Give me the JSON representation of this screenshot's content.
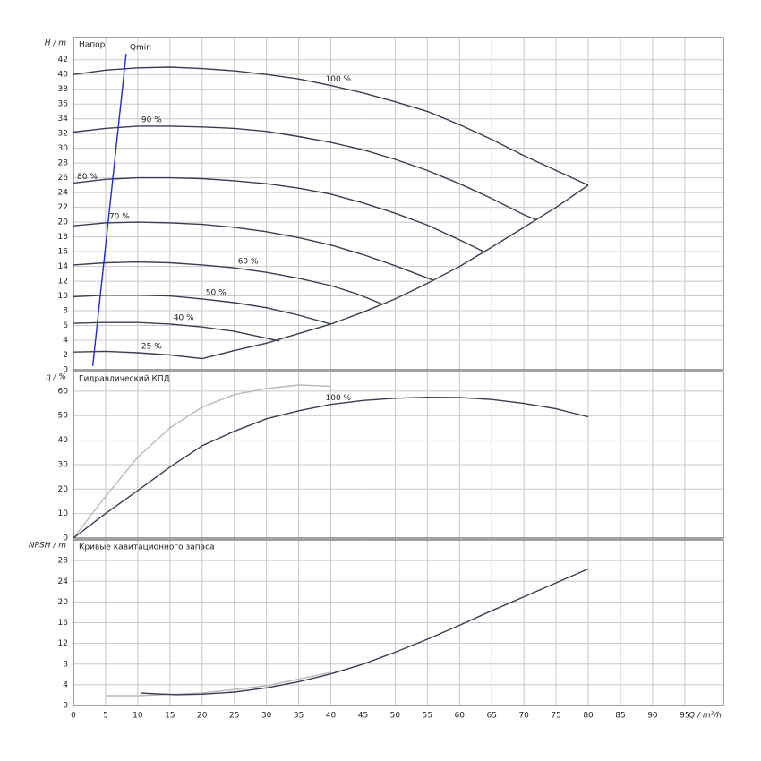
{
  "chart_data": [
    {
      "type": "line",
      "title": "Напор",
      "ylabel": "H / m",
      "grid": true,
      "xlim": [
        0,
        101
      ],
      "xticks": [
        0,
        5,
        10,
        15,
        20,
        25,
        30,
        35,
        40,
        45,
        50,
        55,
        60,
        65,
        70,
        75,
        80,
        85,
        90,
        95
      ],
      "ylim": [
        0,
        45
      ],
      "yticks": [
        0,
        2,
        4,
        6,
        8,
        10,
        12,
        14,
        16,
        18,
        20,
        22,
        24,
        26,
        28,
        30,
        32,
        34,
        36,
        38,
        40,
        42
      ],
      "series": [
        {
          "name": "100 %",
          "color": "#3a3f4f",
          "x": [
            0,
            5,
            10,
            15,
            20,
            25,
            30,
            35,
            40,
            45,
            50,
            55,
            60,
            65,
            70,
            75,
            80
          ],
          "values": [
            40,
            40.6,
            40.9,
            41,
            40.8,
            40.5,
            40,
            39.4,
            38.5,
            37.5,
            36.3,
            35,
            33.2,
            31.2,
            29,
            27,
            25
          ]
        },
        {
          "name": "90 %",
          "color": "#3a3f4f",
          "x": [
            0,
            5,
            10,
            15,
            20,
            25,
            30,
            35,
            40,
            45,
            50,
            55,
            60,
            65,
            70,
            72
          ],
          "values": [
            32.2,
            32.7,
            33,
            33,
            32.9,
            32.7,
            32.3,
            31.6,
            30.8,
            29.8,
            28.5,
            27,
            25.2,
            23.2,
            21,
            20.3
          ]
        },
        {
          "name": "80 %",
          "color": "#3a3f4f",
          "x": [
            0,
            5,
            10,
            15,
            20,
            25,
            30,
            35,
            40,
            45,
            50,
            55,
            60,
            64
          ],
          "values": [
            25.3,
            25.8,
            26,
            26,
            25.9,
            25.6,
            25.2,
            24.6,
            23.8,
            22.6,
            21.2,
            19.6,
            17.6,
            15.9
          ]
        },
        {
          "name": "70 %",
          "color": "#3a3f4f",
          "x": [
            0,
            5,
            10,
            15,
            20,
            25,
            30,
            35,
            40,
            45,
            50,
            56
          ],
          "values": [
            19.5,
            19.9,
            20,
            19.9,
            19.7,
            19.3,
            18.7,
            17.9,
            16.9,
            15.6,
            14.1,
            12.1
          ]
        },
        {
          "name": "60 %",
          "color": "#3a3f4f",
          "x": [
            0,
            5,
            10,
            15,
            20,
            25,
            30,
            35,
            40,
            44,
            48
          ],
          "values": [
            14.2,
            14.5,
            14.6,
            14.5,
            14.2,
            13.8,
            13.2,
            12.4,
            11.4,
            10.3,
            8.9
          ]
        },
        {
          "name": "50 %",
          "color": "#3a3f4f",
          "x": [
            0,
            5,
            10,
            15,
            20,
            25,
            30,
            35,
            40
          ],
          "values": [
            9.9,
            10.1,
            10.1,
            10,
            9.6,
            9.1,
            8.4,
            7.4,
            6.2
          ]
        },
        {
          "name": "40 %",
          "color": "#3a3f4f",
          "x": [
            0,
            5,
            10,
            15,
            20,
            25,
            32
          ],
          "values": [
            6.3,
            6.4,
            6.4,
            6.2,
            5.8,
            5.2,
            3.9
          ]
        },
        {
          "name": "25 %",
          "color": "#3a3f4f",
          "x": [
            0,
            5,
            10,
            15,
            20
          ],
          "values": [
            2.4,
            2.5,
            2.3,
            2,
            1.5
          ]
        },
        {
          "color": "#3a3f4f",
          "x": [
            20,
            25,
            30,
            35,
            40,
            45,
            50,
            55,
            60,
            65,
            70,
            75,
            80
          ],
          "values": [
            1.5,
            2.6,
            3.6,
            4.9,
            6.2,
            7.8,
            9.6,
            11.7,
            14,
            16.6,
            19.3,
            22,
            25
          ]
        },
        {
          "name": "Qmin",
          "color": "#1f2bd6",
          "x": [
            3,
            8.2
          ],
          "values": [
            0.5,
            42.8
          ]
        }
      ]
    },
    {
      "type": "line",
      "title": "Гидравлический КПД",
      "ylabel": "η / %",
      "grid": true,
      "xlim": [
        0,
        101
      ],
      "xticks": [
        0,
        5,
        10,
        15,
        20,
        25,
        30,
        35,
        40,
        45,
        50,
        55,
        60,
        65,
        70,
        75,
        80,
        85,
        90,
        95
      ],
      "ylim": [
        0,
        68
      ],
      "yticks": [
        0,
        10,
        20,
        30,
        40,
        50,
        60
      ],
      "series": [
        {
          "color": "#b8b8b8",
          "x": [
            0,
            5,
            10,
            15,
            20,
            25,
            30,
            35,
            40
          ],
          "values": [
            0,
            17,
            33,
            45,
            53.5,
            58.6,
            61,
            62.5,
            62
          ]
        },
        {
          "name": "100 %",
          "color": "#3a3f4f",
          "x": [
            0,
            5,
            10,
            15,
            20,
            25,
            30,
            35,
            40,
            45,
            50,
            55,
            60,
            65,
            70,
            75,
            80
          ],
          "values": [
            0,
            10,
            19.4,
            29,
            37.7,
            43.6,
            48.7,
            52,
            54.6,
            56.2,
            57.1,
            57.5,
            57.4,
            56.6,
            55,
            52.8,
            49.5
          ]
        }
      ]
    },
    {
      "type": "line",
      "title": "Кривые кавитационного запаса",
      "ylabel": "NPSH / m",
      "xlabel": "Q / m³/h",
      "grid": true,
      "xlim": [
        0,
        101
      ],
      "xticks": [
        0,
        5,
        10,
        15,
        20,
        25,
        30,
        35,
        40,
        45,
        50,
        55,
        60,
        65,
        70,
        75,
        80,
        85,
        90,
        95
      ],
      "ylim": [
        0,
        32
      ],
      "yticks": [
        0,
        4,
        8,
        12,
        16,
        20,
        24,
        28
      ],
      "series": [
        {
          "color": "#b8b8b8",
          "x": [
            5,
            10,
            20,
            30,
            40
          ],
          "values": [
            1.9,
            1.9,
            2.4,
            3.8,
            6.4
          ]
        },
        {
          "color": "#3a3f4f",
          "x": [
            10.5,
            16,
            20,
            25,
            30,
            35,
            40,
            45,
            50,
            55,
            60,
            65,
            70,
            75,
            80
          ],
          "values": [
            2.4,
            2.1,
            2.2,
            2.6,
            3.4,
            4.6,
            6.1,
            8,
            10.3,
            12.8,
            15.5,
            18.3,
            21,
            23.7,
            26.4
          ]
        }
      ]
    }
  ]
}
